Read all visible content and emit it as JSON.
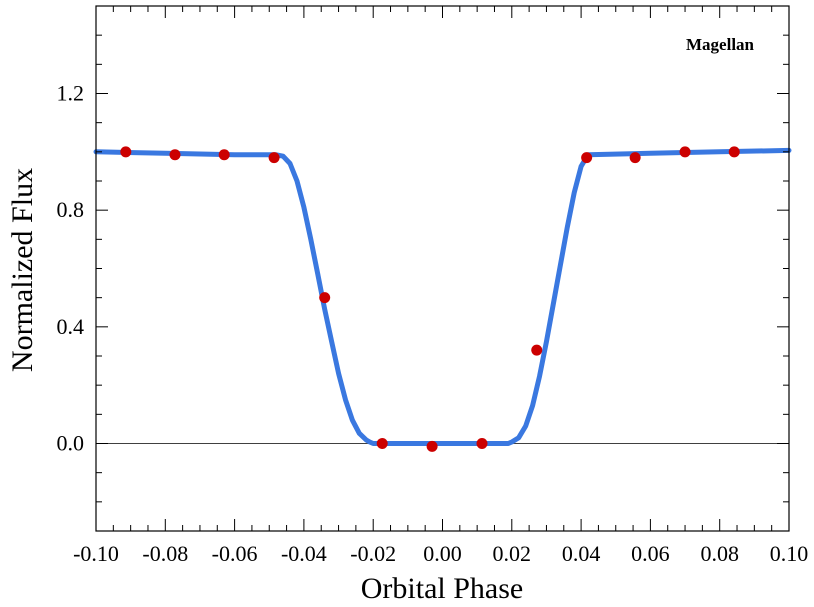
{
  "chart_data": {
    "type": "scatter",
    "title": "",
    "xlabel": "Orbital Phase",
    "ylabel": "Normalized Flux",
    "annotation": "Magellan",
    "xlim": [
      -0.1,
      0.1
    ],
    "ylim": [
      -0.3,
      1.5
    ],
    "x_ticks": [
      -0.1,
      -0.08,
      -0.06,
      -0.04,
      -0.02,
      0.0,
      0.02,
      0.04,
      0.06,
      0.08,
      0.1
    ],
    "x_tick_labels": [
      "-0.10",
      "-0.08",
      "-0.06",
      "-0.04",
      "-0.02",
      "0.00",
      "0.02",
      "0.04",
      "0.06",
      "0.08",
      "0.10"
    ],
    "y_ticks": [
      0.0,
      0.4,
      0.8,
      1.2
    ],
    "y_tick_labels": [
      "0.0",
      "0.4",
      "0.8",
      "1.2"
    ],
    "zero_line": 0.0,
    "grid": false,
    "series": [
      {
        "type": "scatter",
        "color": "#cc0000",
        "x": [
          -0.0914,
          -0.0772,
          -0.063,
          -0.0486,
          -0.034,
          -0.0174,
          -0.003,
          0.0114,
          0.0272,
          0.0416,
          0.0556,
          0.07,
          0.0842
        ],
        "y": [
          1.0,
          0.99,
          0.99,
          0.98,
          0.5,
          0.0,
          -0.01,
          0.0,
          0.32,
          0.98,
          0.98,
          1.0,
          1.0
        ]
      },
      {
        "type": "line",
        "color": "#3a78e0",
        "x": [
          -0.1,
          -0.08,
          -0.06,
          -0.048,
          -0.046,
          -0.044,
          -0.042,
          -0.04,
          -0.038,
          -0.036,
          -0.034,
          -0.032,
          -0.03,
          -0.028,
          -0.026,
          -0.024,
          -0.022,
          -0.021,
          -0.02,
          -0.018,
          0.018,
          0.019,
          0.02,
          0.022,
          0.024,
          0.026,
          0.028,
          0.03,
          0.032,
          0.034,
          0.036,
          0.038,
          0.04,
          0.042,
          0.06,
          0.08,
          0.1
        ],
        "y": [
          1.0,
          0.995,
          0.99,
          0.99,
          0.985,
          0.96,
          0.9,
          0.81,
          0.7,
          0.58,
          0.46,
          0.35,
          0.24,
          0.15,
          0.08,
          0.035,
          0.012,
          0.005,
          0.0,
          0.0,
          0.0,
          0.0,
          0.005,
          0.02,
          0.06,
          0.13,
          0.23,
          0.35,
          0.48,
          0.61,
          0.74,
          0.86,
          0.95,
          0.99,
          0.995,
          1.0,
          1.005
        ]
      }
    ]
  }
}
